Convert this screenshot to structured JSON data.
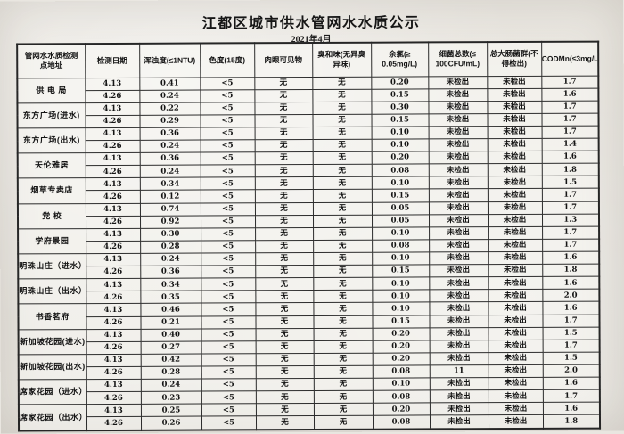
{
  "page": {
    "title": "江都区城市供水管网水水质公示",
    "date": "2021年4月"
  },
  "table": {
    "headers": [
      "管网水水质检测\n点地址",
      "检测日期",
      "浑浊度(≤1NTU)",
      "色度(15度)",
      "肉眼可见物",
      "臭和味(无异臭\n异味)",
      "余氯(≥\n0.05mg/L)",
      "细菌总数(≤\n100CFU/mL)",
      "总大肠菌群(不\n得检出)",
      "CODMn(≤3mg/L)"
    ],
    "groups": [
      {
        "location": "供 电 局",
        "rows": [
          [
            "4.13",
            "0.41",
            "<5",
            "无",
            "无",
            "0.20",
            "未检出",
            "未检出",
            "1.7"
          ],
          [
            "4.26",
            "0.24",
            "<5",
            "无",
            "无",
            "0.15",
            "未检出",
            "未检出",
            "1.6"
          ]
        ]
      },
      {
        "location": "东方广场(进水)",
        "rows": [
          [
            "4.13",
            "0.22",
            "<5",
            "无",
            "无",
            "0.30",
            "未检出",
            "未检出",
            "1.7"
          ],
          [
            "4.26",
            "0.29",
            "<5",
            "无",
            "无",
            "0.15",
            "未检出",
            "未检出",
            "1.7"
          ]
        ]
      },
      {
        "location": "东方广场(出水)",
        "rows": [
          [
            "4.13",
            "0.36",
            "<5",
            "无",
            "无",
            "0.10",
            "未检出",
            "未检出",
            "1.7"
          ],
          [
            "4.26",
            "0.24",
            "<5",
            "无",
            "无",
            "0.10",
            "未检出",
            "未检出",
            "1.4"
          ]
        ]
      },
      {
        "location": "天伦雅居",
        "rows": [
          [
            "4.13",
            "0.36",
            "<5",
            "无",
            "无",
            "0.20",
            "未检出",
            "未检出",
            "1.6"
          ],
          [
            "4.26",
            "0.24",
            "<5",
            "无",
            "无",
            "0.08",
            "未检出",
            "未检出",
            "1.8"
          ]
        ]
      },
      {
        "location": "烟草专卖店",
        "rows": [
          [
            "4.13",
            "0.34",
            "<5",
            "无",
            "无",
            "0.10",
            "未检出",
            "未检出",
            "1.5"
          ],
          [
            "4.26",
            "0.12",
            "<5",
            "无",
            "无",
            "0.15",
            "未检出",
            "未检出",
            "1.7"
          ]
        ]
      },
      {
        "location": "党  校",
        "rows": [
          [
            "4.13",
            "0.74",
            "<5",
            "无",
            "无",
            "0.05",
            "未检出",
            "未检出",
            "1.7"
          ],
          [
            "4.26",
            "0.92",
            "<5",
            "无",
            "无",
            "0.05",
            "未检出",
            "未检出",
            "1.3"
          ]
        ]
      },
      {
        "location": "学府景园",
        "rows": [
          [
            "4.13",
            "0.30",
            "<5",
            "无",
            "无",
            "0.10",
            "未检出",
            "未检出",
            "1.7"
          ],
          [
            "4.26",
            "0.28",
            "<5",
            "无",
            "无",
            "0.08",
            "未检出",
            "未检出",
            "1.7"
          ]
        ]
      },
      {
        "location": "明珠山庄（进水）",
        "rows": [
          [
            "4.13",
            "0.24",
            "<5",
            "无",
            "无",
            "0.10",
            "未检出",
            "未检出",
            "1.6"
          ],
          [
            "4.26",
            "0.36",
            "<5",
            "无",
            "无",
            "0.15",
            "未检出",
            "未检出",
            "1.8"
          ]
        ]
      },
      {
        "location": "明珠山庄（出水）",
        "rows": [
          [
            "4.13",
            "0.34",
            "<5",
            "无",
            "无",
            "0.10",
            "未检出",
            "未检出",
            "1.6"
          ],
          [
            "4.26",
            "0.35",
            "<5",
            "无",
            "无",
            "0.10",
            "未检出",
            "未检出",
            "2.0"
          ]
        ]
      },
      {
        "location": "书香茗府",
        "rows": [
          [
            "4.13",
            "0.46",
            "<5",
            "无",
            "无",
            "0.10",
            "未检出",
            "未检出",
            "1.6"
          ],
          [
            "4.26",
            "0.21",
            "<5",
            "无",
            "无",
            "0.15",
            "未检出",
            "未检出",
            "1.7"
          ]
        ]
      },
      {
        "location": "新加坡花园(进水)",
        "rows": [
          [
            "4.13",
            "0.40",
            "<5",
            "无",
            "无",
            "0.20",
            "未检出",
            "未检出",
            "1.5"
          ],
          [
            "4.26",
            "0.27",
            "<5",
            "无",
            "无",
            "0.20",
            "未检出",
            "未检出",
            "1.7"
          ]
        ]
      },
      {
        "location": "新加坡花园(出水)",
        "rows": [
          [
            "4.13",
            "0.42",
            "<5",
            "无",
            "无",
            "0.20",
            "未检出",
            "未检出",
            "1.5"
          ],
          [
            "4.26",
            "0.28",
            "<5",
            "无",
            "无",
            "0.08",
            "11",
            "未检出",
            "2.0"
          ]
        ]
      },
      {
        "location": "席家花园（进水）",
        "rows": [
          [
            "4.13",
            "0.24",
            "<5",
            "无",
            "无",
            "0.10",
            "未检出",
            "未检出",
            "1.6"
          ],
          [
            "4.26",
            "0.23",
            "<5",
            "无",
            "无",
            "0.08",
            "未检出",
            "未检出",
            "1.7"
          ]
        ]
      },
      {
        "location": "席家花园（出水）",
        "rows": [
          [
            "4.13",
            "0.25",
            "<5",
            "无",
            "无",
            "0.20",
            "未检出",
            "未检出",
            "1.6"
          ],
          [
            "4.26",
            "0.26",
            "<5",
            "无",
            "无",
            "0.08",
            "未检出",
            "未检出",
            "1.8"
          ]
        ]
      }
    ]
  }
}
